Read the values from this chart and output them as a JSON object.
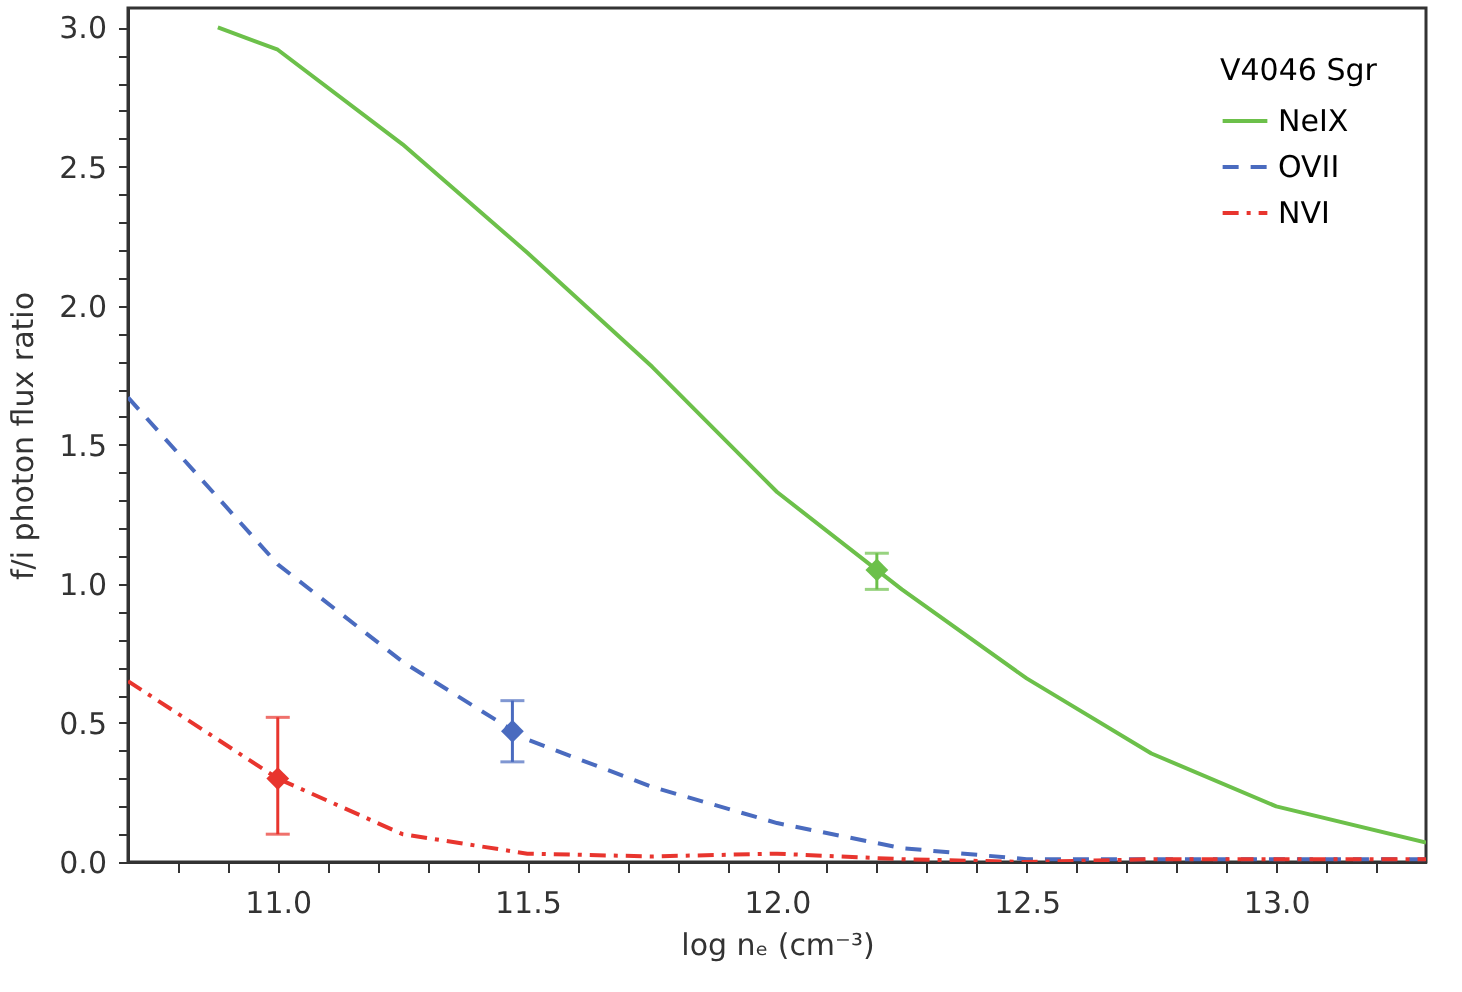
{
  "chart_data": {
    "type": "line",
    "xlabel": "log nₑ (cm⁻³)",
    "ylabel": "f/i photon flux ratio",
    "legend_title": "V4046 Sgr",
    "legend": "top right",
    "xlim": [
      10.7,
      13.3
    ],
    "ylim": [
      0,
      3.07
    ],
    "xticks": [
      {
        "value": 10.8,
        "label": null
      },
      {
        "value": 10.9,
        "label": null
      },
      {
        "value": 11.0,
        "label": "11.0"
      },
      {
        "value": 11.1,
        "label": null
      },
      {
        "value": 11.2,
        "label": null
      },
      {
        "value": 11.3,
        "label": null
      },
      {
        "value": 11.4,
        "label": null
      },
      {
        "value": 11.5,
        "label": "11.5"
      },
      {
        "value": 11.6,
        "label": null
      },
      {
        "value": 11.7,
        "label": null
      },
      {
        "value": 11.8,
        "label": null
      },
      {
        "value": 11.9,
        "label": null
      },
      {
        "value": 12.0,
        "label": "12.0"
      },
      {
        "value": 12.1,
        "label": null
      },
      {
        "value": 12.2,
        "label": null
      },
      {
        "value": 12.3,
        "label": null
      },
      {
        "value": 12.4,
        "label": null
      },
      {
        "value": 12.5,
        "label": "12.5"
      },
      {
        "value": 12.6,
        "label": null
      },
      {
        "value": 12.7,
        "label": null
      },
      {
        "value": 12.8,
        "label": null
      },
      {
        "value": 12.9,
        "label": null
      },
      {
        "value": 13.0,
        "label": "13.0"
      },
      {
        "value": 13.1,
        "label": null
      },
      {
        "value": 13.2,
        "label": null
      }
    ],
    "yticks": [
      {
        "value": 0,
        "label": "0.0"
      },
      {
        "value": 0.1,
        "label": null
      },
      {
        "value": 0.2,
        "label": null
      },
      {
        "value": 0.3,
        "label": null
      },
      {
        "value": 0.4,
        "label": null
      },
      {
        "value": 0.5,
        "label": "0.5"
      },
      {
        "value": 0.6,
        "label": null
      },
      {
        "value": 0.7,
        "label": null
      },
      {
        "value": 0.8,
        "label": null
      },
      {
        "value": 0.9,
        "label": null
      },
      {
        "value": 1.0,
        "label": "1.0"
      },
      {
        "value": 1.1,
        "label": null
      },
      {
        "value": 1.2,
        "label": null
      },
      {
        "value": 1.3,
        "label": null
      },
      {
        "value": 1.4,
        "label": null
      },
      {
        "value": 1.5,
        "label": "1.5"
      },
      {
        "value": 1.6,
        "label": null
      },
      {
        "value": 1.7,
        "label": null
      },
      {
        "value": 1.8,
        "label": null
      },
      {
        "value": 1.9,
        "label": null
      },
      {
        "value": 2.0,
        "label": "2.0"
      },
      {
        "value": 2.1,
        "label": null
      },
      {
        "value": 2.2,
        "label": null
      },
      {
        "value": 2.3,
        "label": null
      },
      {
        "value": 2.4,
        "label": null
      },
      {
        "value": 2.5,
        "label": "2.5"
      },
      {
        "value": 2.6,
        "label": null
      },
      {
        "value": 2.7,
        "label": null
      },
      {
        "value": 2.8,
        "label": null
      },
      {
        "value": 2.9,
        "label": null
      },
      {
        "value": 3.0,
        "label": "3.0"
      }
    ],
    "series": [
      {
        "name": "NeIX",
        "line_style": "solid",
        "color": "#6cc04a",
        "x": [
          10.88,
          11.0,
          11.25,
          11.5,
          11.75,
          12.0,
          12.25,
          12.5,
          12.75,
          13.0,
          13.3
        ],
        "values": [
          3.0,
          2.92,
          2.58,
          2.19,
          1.78,
          1.33,
          0.98,
          0.66,
          0.39,
          0.2,
          0.07
        ]
      },
      {
        "name": "OVII",
        "line_style": "dashed",
        "color": "#4a6bbf",
        "x": [
          10.7,
          11.0,
          11.25,
          11.5,
          11.75,
          12.0,
          12.25,
          12.5,
          12.75,
          13.0,
          13.3
        ],
        "values": [
          1.67,
          1.07,
          0.72,
          0.44,
          0.27,
          0.14,
          0.05,
          0.01,
          0.01,
          0.01,
          0.01
        ]
      },
      {
        "name": "NVI",
        "line_style": "dashdot",
        "color": "#e8352e",
        "x": [
          10.7,
          11.0,
          11.25,
          11.5,
          11.75,
          12.0,
          12.25,
          12.5,
          12.75,
          13.0,
          13.3
        ],
        "values": [
          0.65,
          0.3,
          0.1,
          0.03,
          0.02,
          0.03,
          0.01,
          0.0,
          0.01,
          0.01,
          0.01
        ]
      },
      {
        "type": "scatter",
        "marker": "diamond",
        "color": "#e8352e",
        "x": [
          11.0
        ],
        "values": [
          0.3
        ],
        "errors": [
          [
            0.1,
            0.52
          ]
        ]
      },
      {
        "type": "scatter",
        "marker": "diamond",
        "color": "#4a6bbf",
        "x": [
          11.47
        ],
        "values": [
          0.47
        ],
        "errors": [
          [
            0.36,
            0.58
          ]
        ]
      },
      {
        "type": "scatter",
        "marker": "diamond",
        "color": "#6cc04a",
        "x": [
          12.2
        ],
        "values": [
          1.05
        ],
        "errors": [
          [
            0.98,
            1.11
          ]
        ]
      }
    ]
  }
}
